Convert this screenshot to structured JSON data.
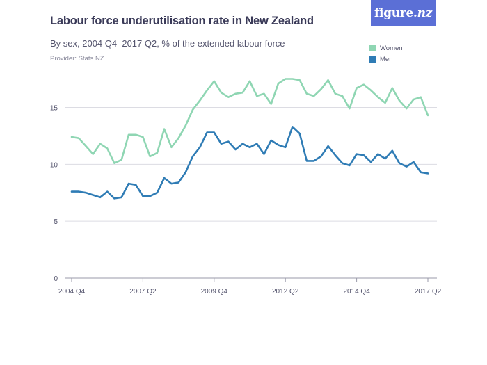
{
  "header": {
    "title": "Labour force underutilisation rate in New Zealand",
    "subtitle": "By sex, 2004 Q4–2017 Q2, % of the extended labour force",
    "provider": "Provider: Stats NZ",
    "logo_main": "figure",
    "logo_suffix": ".nz"
  },
  "colors": {
    "women": "#8fd6b3",
    "men": "#2f7cb5",
    "grid": "#dcdce3",
    "axis": "#9a9aaa",
    "logo_bg": "#5b6fd6"
  },
  "chart_data": {
    "type": "line",
    "title": "Labour force underutilisation rate in New Zealand",
    "subtitle": "By sex, 2004 Q4–2017 Q2, % of the extended labour force",
    "xlabel": "",
    "ylabel": "",
    "ylim": [
      0,
      17.9
    ],
    "yticks": [
      0,
      5,
      10,
      15
    ],
    "grid": true,
    "legend_position": "top-right",
    "xtick_labels": [
      {
        "index": 0,
        "label": "2004 Q4"
      },
      {
        "index": 10,
        "label": "2007 Q2"
      },
      {
        "index": 20,
        "label": "2009 Q4"
      },
      {
        "index": 30,
        "label": "2012 Q2"
      },
      {
        "index": 40,
        "label": "2014 Q4"
      },
      {
        "index": 50,
        "label": "2017 Q2"
      }
    ],
    "x": [
      "2004 Q4",
      "2005 Q1",
      "2005 Q2",
      "2005 Q3",
      "2005 Q4",
      "2006 Q1",
      "2006 Q2",
      "2006 Q3",
      "2006 Q4",
      "2007 Q1",
      "2007 Q2",
      "2007 Q3",
      "2007 Q4",
      "2008 Q1",
      "2008 Q2",
      "2008 Q3",
      "2008 Q4",
      "2009 Q1",
      "2009 Q2",
      "2009 Q3",
      "2009 Q4",
      "2010 Q1",
      "2010 Q2",
      "2010 Q3",
      "2010 Q4",
      "2011 Q1",
      "2011 Q2",
      "2011 Q3",
      "2011 Q4",
      "2012 Q1",
      "2012 Q2",
      "2012 Q3",
      "2012 Q4",
      "2013 Q1",
      "2013 Q2",
      "2013 Q3",
      "2013 Q4",
      "2014 Q1",
      "2014 Q2",
      "2014 Q3",
      "2014 Q4",
      "2015 Q1",
      "2015 Q2",
      "2015 Q3",
      "2015 Q4",
      "2016 Q1",
      "2016 Q2",
      "2016 Q3",
      "2016 Q4",
      "2017 Q1",
      "2017 Q2"
    ],
    "series": [
      {
        "name": "Women",
        "values": [
          12.4,
          12.3,
          11.6,
          10.9,
          11.8,
          11.4,
          10.1,
          10.4,
          12.6,
          12.6,
          12.4,
          10.7,
          11.0,
          13.1,
          11.5,
          12.3,
          13.4,
          14.8,
          15.6,
          16.5,
          17.3,
          16.3,
          15.9,
          16.2,
          16.3,
          17.3,
          16.0,
          16.2,
          15.3,
          17.1,
          17.5,
          17.5,
          17.4,
          16.2,
          16.0,
          16.6,
          17.4,
          16.2,
          16.0,
          14.9,
          16.7,
          17.0,
          16.5,
          15.9,
          15.4,
          16.7,
          15.6,
          14.9,
          15.7,
          15.9,
          14.3
        ]
      },
      {
        "name": "Men",
        "values": [
          7.6,
          7.6,
          7.5,
          7.3,
          7.1,
          7.6,
          7.0,
          7.1,
          8.3,
          8.2,
          7.2,
          7.2,
          7.5,
          8.8,
          8.3,
          8.4,
          9.3,
          10.7,
          11.5,
          12.8,
          12.8,
          11.8,
          12.0,
          11.3,
          11.8,
          11.5,
          11.8,
          10.9,
          12.1,
          11.7,
          11.5,
          13.3,
          12.7,
          10.3,
          10.3,
          10.7,
          11.6,
          10.8,
          10.1,
          9.9,
          10.9,
          10.8,
          10.2,
          10.9,
          10.5,
          11.2,
          10.1,
          9.8,
          10.2,
          9.3,
          9.2
        ]
      }
    ]
  }
}
